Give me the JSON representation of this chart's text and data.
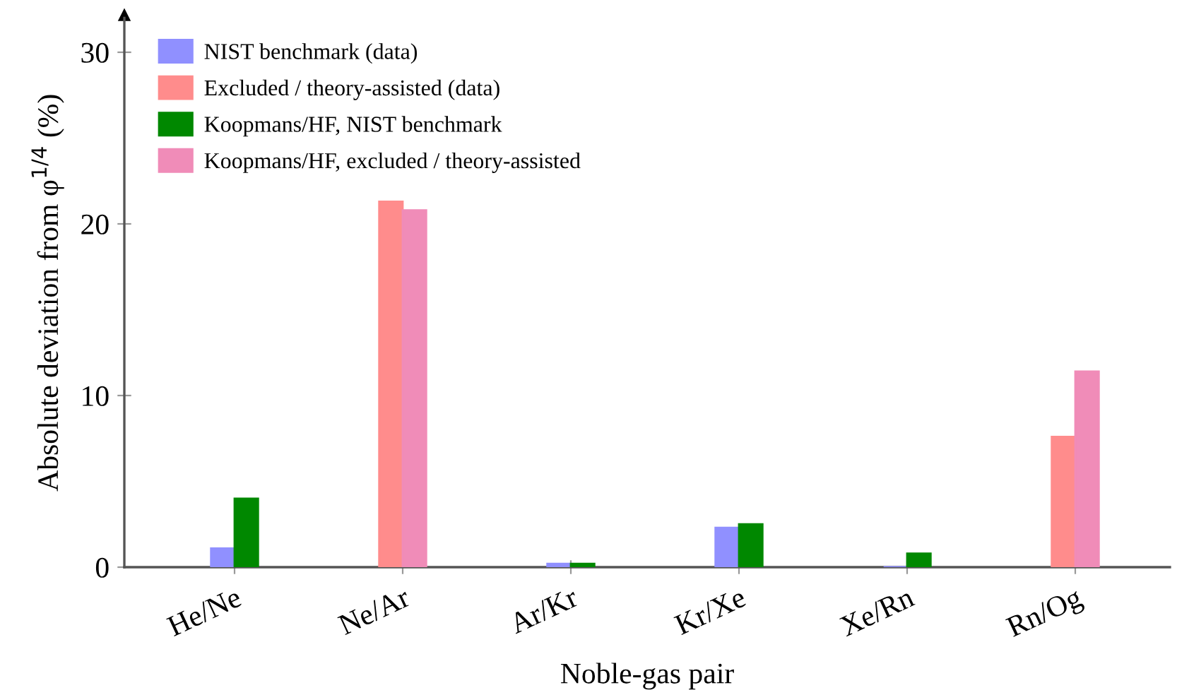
{
  "chart_data": {
    "type": "bar",
    "xlabel": "Noble-gas pair",
    "ylabel": "Absolute deviation from φ$^{1/4}$ (%)",
    "categories": [
      "He/Ne",
      "Ne/Ar",
      "Ar/Kr",
      "Kr/Xe",
      "Xe/Rn",
      "Rn/Og"
    ],
    "series": [
      {
        "name": "NIST benchmark (data)",
        "color": "#9090ff",
        "values": [
          1.1,
          null,
          0.2,
          2.3,
          0,
          null
        ]
      },
      {
        "name": "Excluded / theory-assisted (data)",
        "color": "#ff8c8c",
        "values": [
          null,
          21.3,
          null,
          null,
          null,
          7.6
        ]
      },
      {
        "name": "Koopmans/HF, NIST benchmark",
        "color": "#008800",
        "values": [
          4.0,
          null,
          0.2,
          2.5,
          0.8,
          null
        ]
      },
      {
        "name": "Koopmans/HF, excluded / theory-assisted",
        "color": "#f08cb8",
        "values": [
          null,
          20.8,
          null,
          null,
          null,
          11.4
        ]
      }
    ],
    "ylim": [
      0,
      32
    ],
    "yticks": [
      0,
      10,
      20,
      30
    ],
    "grid": false,
    "legend": "top left"
  }
}
